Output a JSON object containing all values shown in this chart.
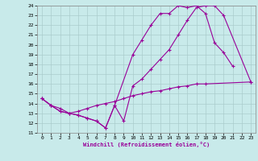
{
  "xlabel": "Windchill (Refroidissement éolien,°C)",
  "xlim": [
    -0.5,
    23.5
  ],
  "ylim": [
    11,
    24
  ],
  "xticks": [
    0,
    1,
    2,
    3,
    4,
    5,
    6,
    7,
    8,
    9,
    10,
    11,
    12,
    13,
    14,
    15,
    16,
    17,
    18,
    19,
    20,
    21,
    22,
    23
  ],
  "yticks": [
    11,
    12,
    13,
    14,
    15,
    16,
    17,
    18,
    19,
    20,
    21,
    22,
    23,
    24
  ],
  "bg_color": "#c8eaea",
  "grid_color": "#aacccc",
  "line_color": "#990099",
  "line1_x": [
    0,
    1,
    2,
    3,
    4,
    5,
    6,
    7,
    8,
    10,
    11,
    12,
    13,
    14,
    15,
    16,
    17,
    18,
    19,
    20,
    21
  ],
  "line1_y": [
    14.5,
    13.8,
    13.2,
    13.0,
    12.8,
    12.5,
    12.2,
    11.5,
    13.8,
    19.0,
    20.5,
    22.0,
    23.2,
    23.2,
    24.0,
    23.8,
    24.0,
    23.2,
    20.2,
    19.2,
    17.8
  ],
  "line2_x": [
    0,
    1,
    2,
    3,
    4,
    5,
    6,
    7,
    8,
    9,
    10,
    11,
    12,
    13,
    14,
    15,
    16,
    17,
    18,
    19,
    20,
    23
  ],
  "line2_y": [
    14.5,
    13.8,
    13.2,
    13.0,
    12.8,
    12.5,
    12.2,
    11.5,
    13.8,
    12.2,
    15.8,
    16.5,
    17.5,
    18.5,
    19.5,
    21.0,
    22.5,
    23.8,
    24.0,
    24.0,
    23.0,
    16.2
  ],
  "line3_x": [
    0,
    1,
    2,
    3,
    4,
    5,
    6,
    7,
    8,
    9,
    10,
    11,
    12,
    13,
    14,
    15,
    16,
    17,
    18,
    23
  ],
  "line3_y": [
    14.5,
    13.8,
    13.5,
    13.0,
    13.2,
    13.5,
    13.8,
    14.0,
    14.2,
    14.5,
    14.8,
    15.0,
    15.2,
    15.3,
    15.5,
    15.7,
    15.8,
    16.0,
    16.0,
    16.2
  ]
}
